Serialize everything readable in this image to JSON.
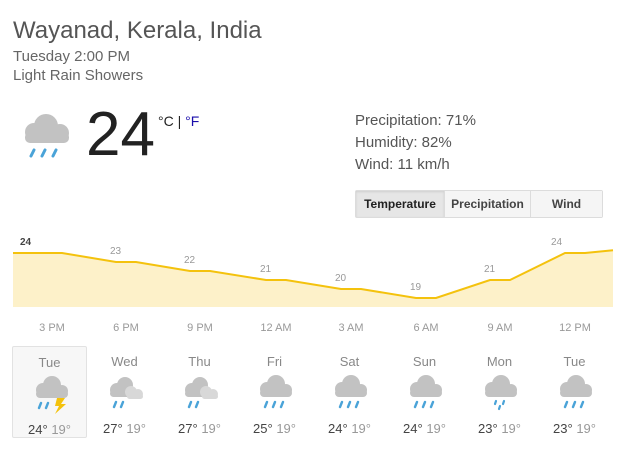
{
  "location": "Wayanad, Kerala, India",
  "datetime": "Tuesday 2:00 PM",
  "condition": "Light Rain Showers",
  "current": {
    "temp": "24",
    "unit_c": "°C",
    "unit_sep": " | ",
    "unit_f": "°F",
    "icon": "rain-shower-cloud-icon"
  },
  "stats": {
    "precipitation": "Precipitation: 71%",
    "humidity": "Humidity: 82%",
    "wind": "Wind: 11 km/h"
  },
  "tabs": [
    {
      "label": "Temperature",
      "active": true
    },
    {
      "label": "Precipitation",
      "active": false
    },
    {
      "label": "Wind",
      "active": false
    }
  ],
  "chart_data": {
    "type": "area",
    "series": [
      {
        "values": [
          {
            "x": 0,
            "y": 24,
            "label": "24"
          },
          {
            "x": 1,
            "y": 23,
            "label": "23"
          },
          {
            "x": 2,
            "y": 22,
            "label": "22"
          },
          {
            "x": 3,
            "y": 21,
            "label": "21"
          },
          {
            "x": 4,
            "y": 20,
            "label": "20"
          },
          {
            "x": 5,
            "y": 19,
            "label": "19"
          },
          {
            "x": 6,
            "y": 21,
            "label": "21"
          },
          {
            "x": 7,
            "y": 24,
            "label": "24"
          }
        ]
      }
    ],
    "categories": [
      "3 PM",
      "6 PM",
      "9 PM",
      "12 AM",
      "3 AM",
      "6 AM",
      "9 AM",
      "12 PM"
    ],
    "line_color": "#f4c20d",
    "fill_color": "#fdf1c9"
  },
  "days": [
    {
      "name": "Tue",
      "high": "24°",
      "low": "19°",
      "icon": "rain-thunder-icon",
      "selected": true
    },
    {
      "name": "Wed",
      "high": "27°",
      "low": "19°",
      "icon": "partly-cloudy-rain-icon"
    },
    {
      "name": "Thu",
      "high": "27°",
      "low": "19°",
      "icon": "partly-cloudy-rain-icon"
    },
    {
      "name": "Fri",
      "high": "25°",
      "low": "19°",
      "icon": "rain-shower-icon"
    },
    {
      "name": "Sat",
      "high": "24°",
      "low": "19°",
      "icon": "rain-shower-icon"
    },
    {
      "name": "Sun",
      "high": "24°",
      "low": "19°",
      "icon": "rain-shower-icon"
    },
    {
      "name": "Mon",
      "high": "23°",
      "low": "19°",
      "icon": "light-rain-icon"
    },
    {
      "name": "Tue",
      "high": "23°",
      "low": "19°",
      "icon": "rain-shower-icon"
    }
  ]
}
